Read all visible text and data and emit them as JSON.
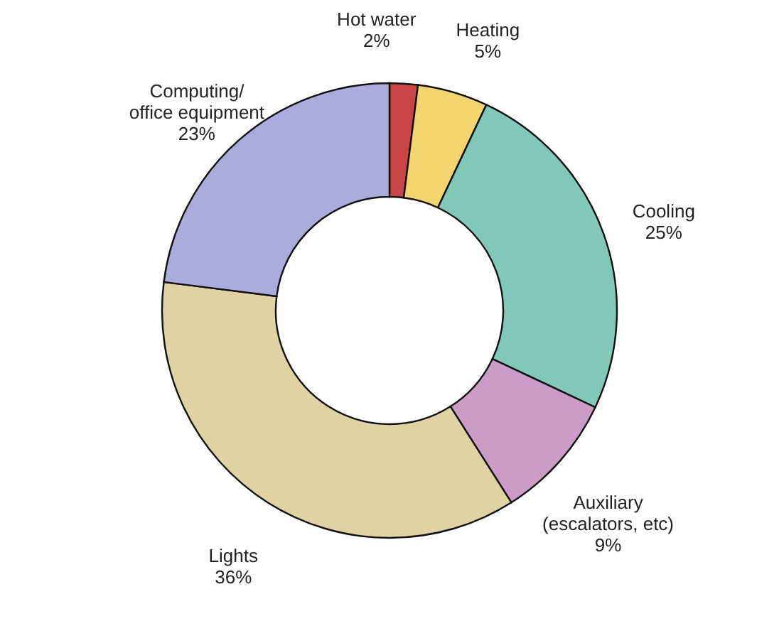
{
  "chart_data": {
    "type": "donut",
    "categories": [
      "Hot water",
      "Heating",
      "Cooling",
      "Auxiliary\n(escalators, etc)",
      "Lights",
      "Computing/\noffice equipment"
    ],
    "values": [
      2,
      5,
      25,
      9,
      36,
      23
    ],
    "value_labels": [
      "2%",
      "5%",
      "25%",
      "9%",
      "36%",
      "23%"
    ],
    "colors": [
      "#c94545",
      "#f3d46e",
      "#82c8b8",
      "#cc9cc9",
      "#dfd3a3",
      "#ababdc"
    ]
  }
}
